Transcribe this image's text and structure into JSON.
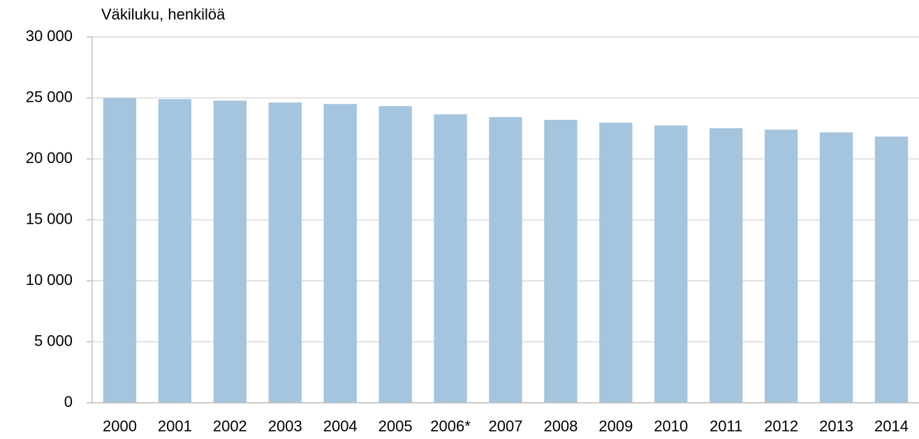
{
  "chart_data": {
    "type": "bar",
    "y_label": "Väkiluku, henkilöä",
    "categories": [
      "2000",
      "2001",
      "2002",
      "2003",
      "2004",
      "2005",
      "2006*",
      "2007",
      "2008",
      "2009",
      "2010",
      "2011",
      "2012",
      "2013",
      "2014"
    ],
    "values": [
      25000,
      24900,
      24780,
      24620,
      24500,
      24330,
      23650,
      23430,
      23200,
      22970,
      22740,
      22510,
      22400,
      22170,
      21830
    ],
    "color": "#a5c4de",
    "ylim": [
      0,
      30000
    ],
    "yticks": [
      0,
      {
        "value": 5000,
        "label": "5 000"
      },
      {
        "value": 10000,
        "label": "10 000"
      },
      {
        "value": 15000,
        "label": "15 000"
      },
      {
        "value": 20000,
        "label": "20 000"
      },
      {
        "value": 25000,
        "label": "25 000"
      },
      {
        "value": 30000,
        "label": "30 000"
      }
    ],
    "grid": true
  }
}
